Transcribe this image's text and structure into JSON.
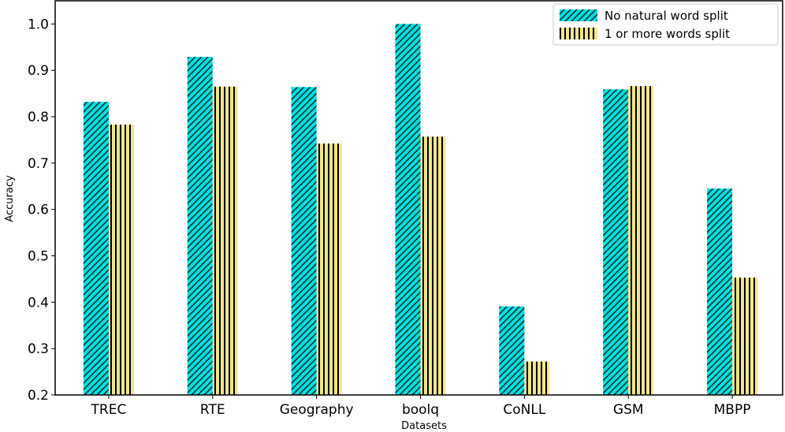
{
  "chart_data": {
    "type": "bar",
    "title": "",
    "xlabel": "Datasets",
    "ylabel": "Accuracy",
    "categories": [
      "TREC",
      "RTE",
      "Geography",
      "boolq",
      "CoNLL",
      "GSM",
      "MBPP"
    ],
    "series": [
      {
        "name": "No natural word split",
        "values": [
          0.832,
          0.929,
          0.864,
          1.0,
          0.391,
          0.859,
          0.645
        ],
        "color": "#00e0e0",
        "hatch": "diagonal"
      },
      {
        "name": "1 or more words split",
        "values": [
          0.783,
          0.865,
          0.742,
          0.757,
          0.272,
          0.866,
          0.453
        ],
        "color": "#f0e68c",
        "hatch": "vertical"
      }
    ],
    "ylim": [
      0.2,
      1.05
    ],
    "yticks": [
      "0.2",
      "0.3",
      "0.4",
      "0.5",
      "0.6",
      "0.7",
      "0.8",
      "0.9",
      "1.0"
    ],
    "grid": false,
    "legend_position": "top-right"
  }
}
